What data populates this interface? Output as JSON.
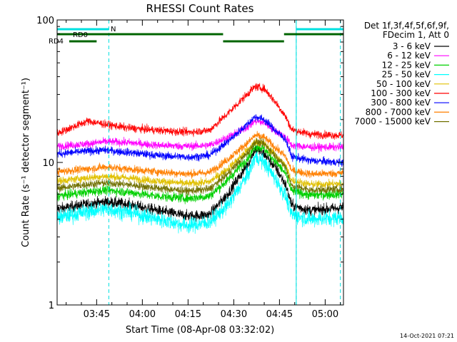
{
  "chart_data": {
    "type": "line",
    "title": "RHESSI Count Rates",
    "xlabel": "Start Time (08-Apr-08 03:32:02)",
    "ylabel": "Count Rate (s⁻¹ detector segment⁻¹)",
    "y_scale": "log",
    "ylim": [
      1,
      100
    ],
    "xlim": [
      "03:32:02",
      "05:06:00"
    ],
    "x_ticks": [
      "03:45",
      "04:00",
      "04:15",
      "04:30",
      "04:45",
      "05:00"
    ],
    "y_ticks": [
      "1",
      "10",
      "100"
    ],
    "grid": false,
    "legend_position": "right",
    "legend_header": [
      "Det 1f,3f,4f,5f,6f,9f,",
      "FDecim 1, Att 0"
    ],
    "timestamp": "14-Oct-2021 07:21",
    "colors": {
      "RD0": "#006400",
      "RD4": "#006400",
      "N": "#00e0e0"
    },
    "flags": [
      {
        "label": "N",
        "color": "#00e0e0",
        "intervals": [
          [
            "03:32:02",
            "03:49:00"
          ],
          [
            "04:50:30",
            "05:06:00"
          ]
        ]
      },
      {
        "label": "RD0",
        "color": "#006400",
        "intervals": [
          [
            "03:32:02",
            "04:26:30"
          ],
          [
            "04:46:30",
            "05:06:00"
          ]
        ]
      },
      {
        "label": "RD4",
        "color": "#006400",
        "intervals": [
          [
            "03:36:00",
            "03:45:00"
          ],
          [
            "04:26:30",
            "04:46:30"
          ]
        ]
      }
    ],
    "vlines": [
      "03:49:00",
      "04:50:30",
      "05:05:00"
    ],
    "solid_vlines": [
      "03:32:02",
      "04:50:30"
    ],
    "series": [
      {
        "name": "3 - 6 keV",
        "color": "#000000",
        "times": [
          "03:32:02",
          "03:42:00",
          "03:48:00",
          "03:55:00",
          "04:05:00",
          "04:15:00",
          "04:22:00",
          "04:28:00",
          "04:35:00",
          "04:37:00",
          "04:40:00",
          "04:44:00",
          "04:47:00",
          "04:49:00",
          "04:55:00",
          "05:05:00"
        ],
        "values": [
          4.7,
          5.1,
          5.3,
          5.1,
          4.6,
          4.2,
          4.3,
          6.0,
          10.0,
          12.5,
          11.5,
          9.0,
          7.0,
          5.0,
          4.6,
          4.8
        ]
      },
      {
        "name": "6 - 12 keV",
        "color": "#ff00ff",
        "times": [
          "03:32:02",
          "03:42:00",
          "03:48:00",
          "03:55:00",
          "04:05:00",
          "04:15:00",
          "04:22:00",
          "04:28:00",
          "04:35:00",
          "04:37:00",
          "04:40:00",
          "04:44:00",
          "04:47:00",
          "04:49:00",
          "04:55:00",
          "05:05:00"
        ],
        "values": [
          13.0,
          13.5,
          14.0,
          13.8,
          13.2,
          13.0,
          13.2,
          15.0,
          18.0,
          19.5,
          19.0,
          16.5,
          15.0,
          13.2,
          12.8,
          12.8
        ]
      },
      {
        "name": "12 - 25 keV",
        "color": "#00d000",
        "times": [
          "03:32:02",
          "03:42:00",
          "03:48:00",
          "03:55:00",
          "04:05:00",
          "04:15:00",
          "04:22:00",
          "04:28:00",
          "04:35:00",
          "04:37:00",
          "04:40:00",
          "04:44:00",
          "04:47:00",
          "04:49:00",
          "04:55:00",
          "05:05:00"
        ],
        "values": [
          5.8,
          6.2,
          6.4,
          6.2,
          5.8,
          5.6,
          5.8,
          7.5,
          11.0,
          13.0,
          12.5,
          10.0,
          8.3,
          6.3,
          5.9,
          6.0
        ]
      },
      {
        "name": "25 - 50 keV",
        "color": "#00ffff",
        "times": [
          "03:32:02",
          "03:42:00",
          "03:48:00",
          "03:55:00",
          "04:05:00",
          "04:15:00",
          "04:22:00",
          "04:28:00",
          "04:35:00",
          "04:37:00",
          "04:40:00",
          "04:44:00",
          "04:47:00",
          "04:49:00",
          "04:55:00",
          "05:05:00"
        ],
        "values": [
          4.1,
          4.5,
          4.7,
          4.5,
          4.0,
          3.6,
          3.8,
          5.0,
          8.5,
          11.0,
          10.0,
          7.5,
          5.8,
          4.3,
          4.0,
          4.1
        ]
      },
      {
        "name": "50 - 100 keV",
        "color": "#e0c000",
        "times": [
          "03:32:02",
          "03:42:00",
          "03:48:00",
          "03:55:00",
          "04:05:00",
          "04:15:00",
          "04:22:00",
          "04:28:00",
          "04:35:00",
          "04:37:00",
          "04:40:00",
          "04:44:00",
          "04:47:00",
          "04:49:00",
          "04:55:00",
          "05:05:00"
        ],
        "values": [
          7.4,
          7.8,
          8.0,
          7.8,
          7.4,
          7.1,
          7.3,
          9.0,
          12.5,
          14.0,
          13.5,
          11.0,
          9.5,
          7.5,
          7.0,
          7.1
        ]
      },
      {
        "name": "100 - 300 keV",
        "color": "#ff0000",
        "times": [
          "03:32:02",
          "03:42:00",
          "03:48:00",
          "03:55:00",
          "04:05:00",
          "04:15:00",
          "04:22:00",
          "04:28:00",
          "04:35:00",
          "04:37:00",
          "04:40:00",
          "04:44:00",
          "04:47:00",
          "04:49:00",
          "04:55:00",
          "05:05:00"
        ],
        "values": [
          16.0,
          19.5,
          18.5,
          17.5,
          16.8,
          16.3,
          16.8,
          22.0,
          31.0,
          34.0,
          33.0,
          26.0,
          21.0,
          17.0,
          15.8,
          15.5
        ]
      },
      {
        "name": "300 - 800 keV",
        "color": "#0000ff",
        "times": [
          "03:32:02",
          "03:42:00",
          "03:48:00",
          "03:55:00",
          "04:05:00",
          "04:15:00",
          "04:22:00",
          "04:28:00",
          "04:35:00",
          "04:37:00",
          "04:40:00",
          "04:44:00",
          "04:47:00",
          "04:49:00",
          "04:55:00",
          "05:05:00"
        ],
        "values": [
          11.5,
          12.0,
          12.2,
          11.8,
          11.2,
          10.9,
          11.2,
          14.0,
          19.0,
          21.0,
          20.0,
          16.5,
          14.5,
          11.0,
          10.3,
          10.0
        ]
      },
      {
        "name": "800 - 7000 keV",
        "color": "#ff8000",
        "times": [
          "03:32:02",
          "03:42:00",
          "03:48:00",
          "03:55:00",
          "04:05:00",
          "04:15:00",
          "04:22:00",
          "04:28:00",
          "04:35:00",
          "04:37:00",
          "04:40:00",
          "04:44:00",
          "04:47:00",
          "04:49:00",
          "04:55:00",
          "05:05:00"
        ],
        "values": [
          8.6,
          9.0,
          9.3,
          9.0,
          8.6,
          8.3,
          8.5,
          10.5,
          14.0,
          15.5,
          15.0,
          12.5,
          11.0,
          8.8,
          8.3,
          8.4
        ]
      },
      {
        "name": "7000 - 15000 keV",
        "color": "#707000",
        "times": [
          "03:32:02",
          "03:42:00",
          "03:48:00",
          "03:55:00",
          "04:05:00",
          "04:15:00",
          "04:22:00",
          "04:28:00",
          "04:35:00",
          "04:37:00",
          "04:40:00",
          "04:44:00",
          "04:47:00",
          "04:49:00",
          "04:55:00",
          "05:05:00"
        ],
        "values": [
          6.6,
          7.0,
          7.2,
          7.0,
          6.6,
          6.3,
          6.5,
          8.3,
          12.0,
          14.0,
          13.5,
          11.0,
          9.3,
          6.9,
          6.4,
          6.5
        ]
      }
    ]
  }
}
